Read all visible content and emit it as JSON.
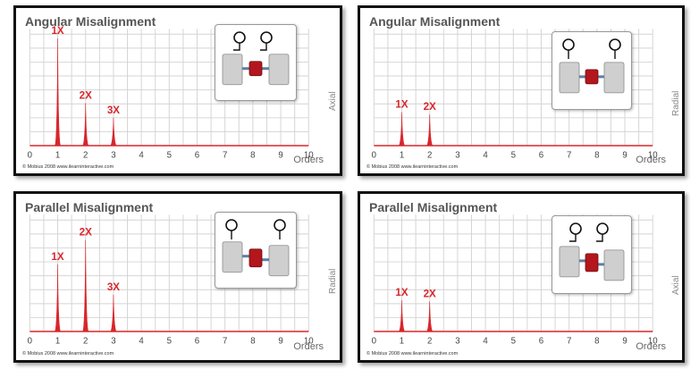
{
  "footer_credit": "© Mobius 2008 www.ilearninteractive.com",
  "colors": {
    "peak": "#d8262b",
    "grid": "#d4d4d4",
    "baseline": "#d8262b",
    "tick_text": "#444444"
  },
  "chart_data": [
    {
      "type": "line",
      "title": "Angular Misalignment",
      "direction": "Axial",
      "xlabel": "Orders",
      "xlim": [
        0,
        10
      ],
      "ylim": [
        0,
        1
      ],
      "x_ticks": [
        "0",
        "1",
        "2",
        "3",
        "4",
        "5",
        "6",
        "7",
        "8",
        "9",
        "10"
      ],
      "series": [
        {
          "x": [
            1,
            2,
            3
          ],
          "values": [
            0.96,
            0.38,
            0.25
          ]
        }
      ],
      "peak_labels": [
        "1X",
        "2X",
        "3X"
      ],
      "grid": true
    },
    {
      "type": "line",
      "title": "Angular Misalignment",
      "direction": "Radial",
      "xlabel": "Orders",
      "xlim": [
        0,
        10
      ],
      "ylim": [
        0,
        1
      ],
      "x_ticks": [
        "0",
        "1",
        "2",
        "3",
        "4",
        "5",
        "6",
        "7",
        "8",
        "9",
        "10"
      ],
      "series": [
        {
          "x": [
            1,
            2
          ],
          "values": [
            0.3,
            0.28
          ]
        }
      ],
      "peak_labels": [
        "1X",
        "2X"
      ],
      "grid": true
    },
    {
      "type": "line",
      "title": "Parallel Misalignment",
      "direction": "Radial",
      "xlabel": "Orders",
      "xlim": [
        0,
        10
      ],
      "ylim": [
        0,
        1
      ],
      "x_ticks": [
        "0",
        "1",
        "2",
        "3",
        "4",
        "5",
        "6",
        "7",
        "8",
        "9",
        "10"
      ],
      "series": [
        {
          "x": [
            1,
            2,
            3
          ],
          "values": [
            0.6,
            0.82,
            0.33
          ]
        }
      ],
      "peak_labels": [
        "1X",
        "2X",
        "3X"
      ],
      "grid": true
    },
    {
      "type": "line",
      "title": "Parallel Misalignment",
      "direction": "Axial",
      "xlabel": "Orders",
      "xlim": [
        0,
        10
      ],
      "ylim": [
        0,
        1
      ],
      "x_ticks": [
        "0",
        "1",
        "2",
        "3",
        "4",
        "5",
        "6",
        "7",
        "8",
        "9",
        "10"
      ],
      "series": [
        {
          "x": [
            1,
            2
          ],
          "values": [
            0.28,
            0.27
          ]
        }
      ],
      "peak_labels": [
        "1X",
        "2X"
      ],
      "grid": true
    }
  ]
}
